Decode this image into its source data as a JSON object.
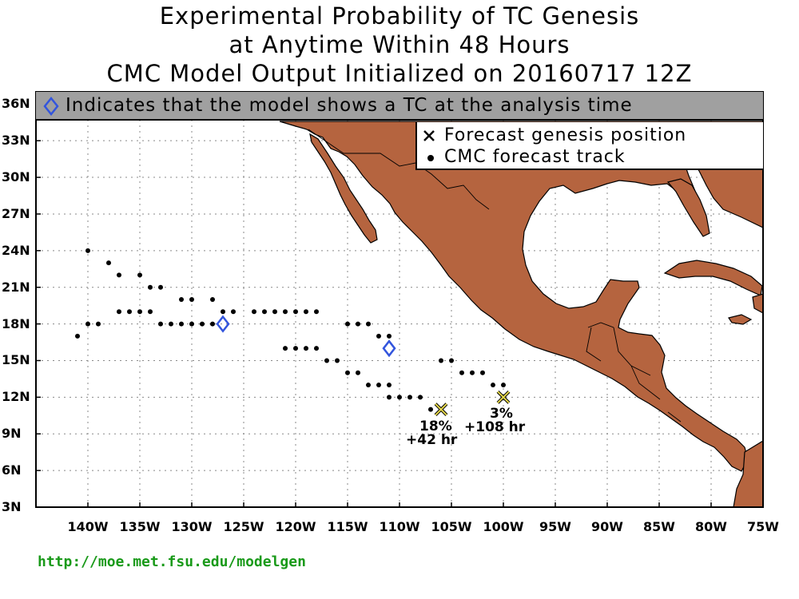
{
  "title": {
    "line1": "Experimental Probability of TC Genesis",
    "line2": "at Anytime Within 48 Hours",
    "line3": "CMC Model Output Initialized on 20160717 12Z"
  },
  "analysis_note": "Indicates that the model shows a TC at the analysis time",
  "legend": {
    "genesis_label": "Forecast genesis position",
    "track_label": "CMC forecast track"
  },
  "map": {
    "lon_range": [
      -145,
      -75
    ],
    "lat_range": [
      3,
      37
    ],
    "lat_ticks": [
      "36N",
      "33N",
      "30N",
      "27N",
      "24N",
      "21N",
      "18N",
      "15N",
      "12N",
      "9N",
      "6N",
      "3N"
    ],
    "lon_ticks": [
      "140W",
      "135W",
      "130W",
      "125W",
      "120W",
      "115W",
      "110W",
      "105W",
      "100W",
      "95W",
      "90W",
      "85W",
      "80W",
      "75W"
    ],
    "land_color": "#b5643f",
    "ocean_color": "#ffffff",
    "analysis_marker_color": "#3355dd",
    "genesis_marker_color": "#e6d84a"
  },
  "analysis_positions": [
    {
      "lon": -127,
      "lat": 18
    },
    {
      "lon": -111,
      "lat": 16
    }
  ],
  "track_points": [
    [
      -141,
      17
    ],
    [
      -140,
      18
    ],
    [
      -139,
      18
    ],
    [
      -140,
      24
    ],
    [
      -138,
      23
    ],
    [
      -137,
      22
    ],
    [
      -137,
      19
    ],
    [
      -136,
      19
    ],
    [
      -135,
      19
    ],
    [
      -134,
      19
    ],
    [
      -135,
      22
    ],
    [
      -134,
      21
    ],
    [
      -133,
      21
    ],
    [
      -133,
      18
    ],
    [
      -132,
      18
    ],
    [
      -131,
      18
    ],
    [
      -130,
      18
    ],
    [
      -129,
      18
    ],
    [
      -128,
      18
    ],
    [
      -131,
      20
    ],
    [
      -130,
      20
    ],
    [
      -128,
      20
    ],
    [
      -127,
      19
    ],
    [
      -126,
      19
    ],
    [
      -124,
      19
    ],
    [
      -123,
      19
    ],
    [
      -122,
      19
    ],
    [
      -121,
      19
    ],
    [
      -120,
      19
    ],
    [
      -119,
      19
    ],
    [
      -118,
      19
    ],
    [
      -121,
      16
    ],
    [
      -120,
      16
    ],
    [
      -119,
      16
    ],
    [
      -118,
      16
    ],
    [
      -117,
      15
    ],
    [
      -116,
      15
    ],
    [
      -115,
      14
    ],
    [
      -114,
      14
    ],
    [
      -113,
      13
    ],
    [
      -112,
      13
    ],
    [
      -111,
      13
    ],
    [
      -115,
      18
    ],
    [
      -114,
      18
    ],
    [
      -113,
      18
    ],
    [
      -112,
      17
    ],
    [
      -111,
      17
    ],
    [
      -111,
      12
    ],
    [
      -110,
      12
    ],
    [
      -109,
      12
    ],
    [
      -108,
      12
    ],
    [
      -107,
      11
    ],
    [
      -106,
      15
    ],
    [
      -105,
      15
    ],
    [
      -104,
      14
    ],
    [
      -103,
      14
    ],
    [
      -102,
      14
    ],
    [
      -101,
      13
    ],
    [
      -100,
      13
    ]
  ],
  "genesis_positions": [
    {
      "lon": -106,
      "lat": 11,
      "prob": "18%",
      "time": "+42 hr"
    },
    {
      "lon": -100,
      "lat": 12,
      "prob": "3%",
      "time": "+108 hr"
    }
  ],
  "url": "http://moe.met.fsu.edu/modelgen"
}
